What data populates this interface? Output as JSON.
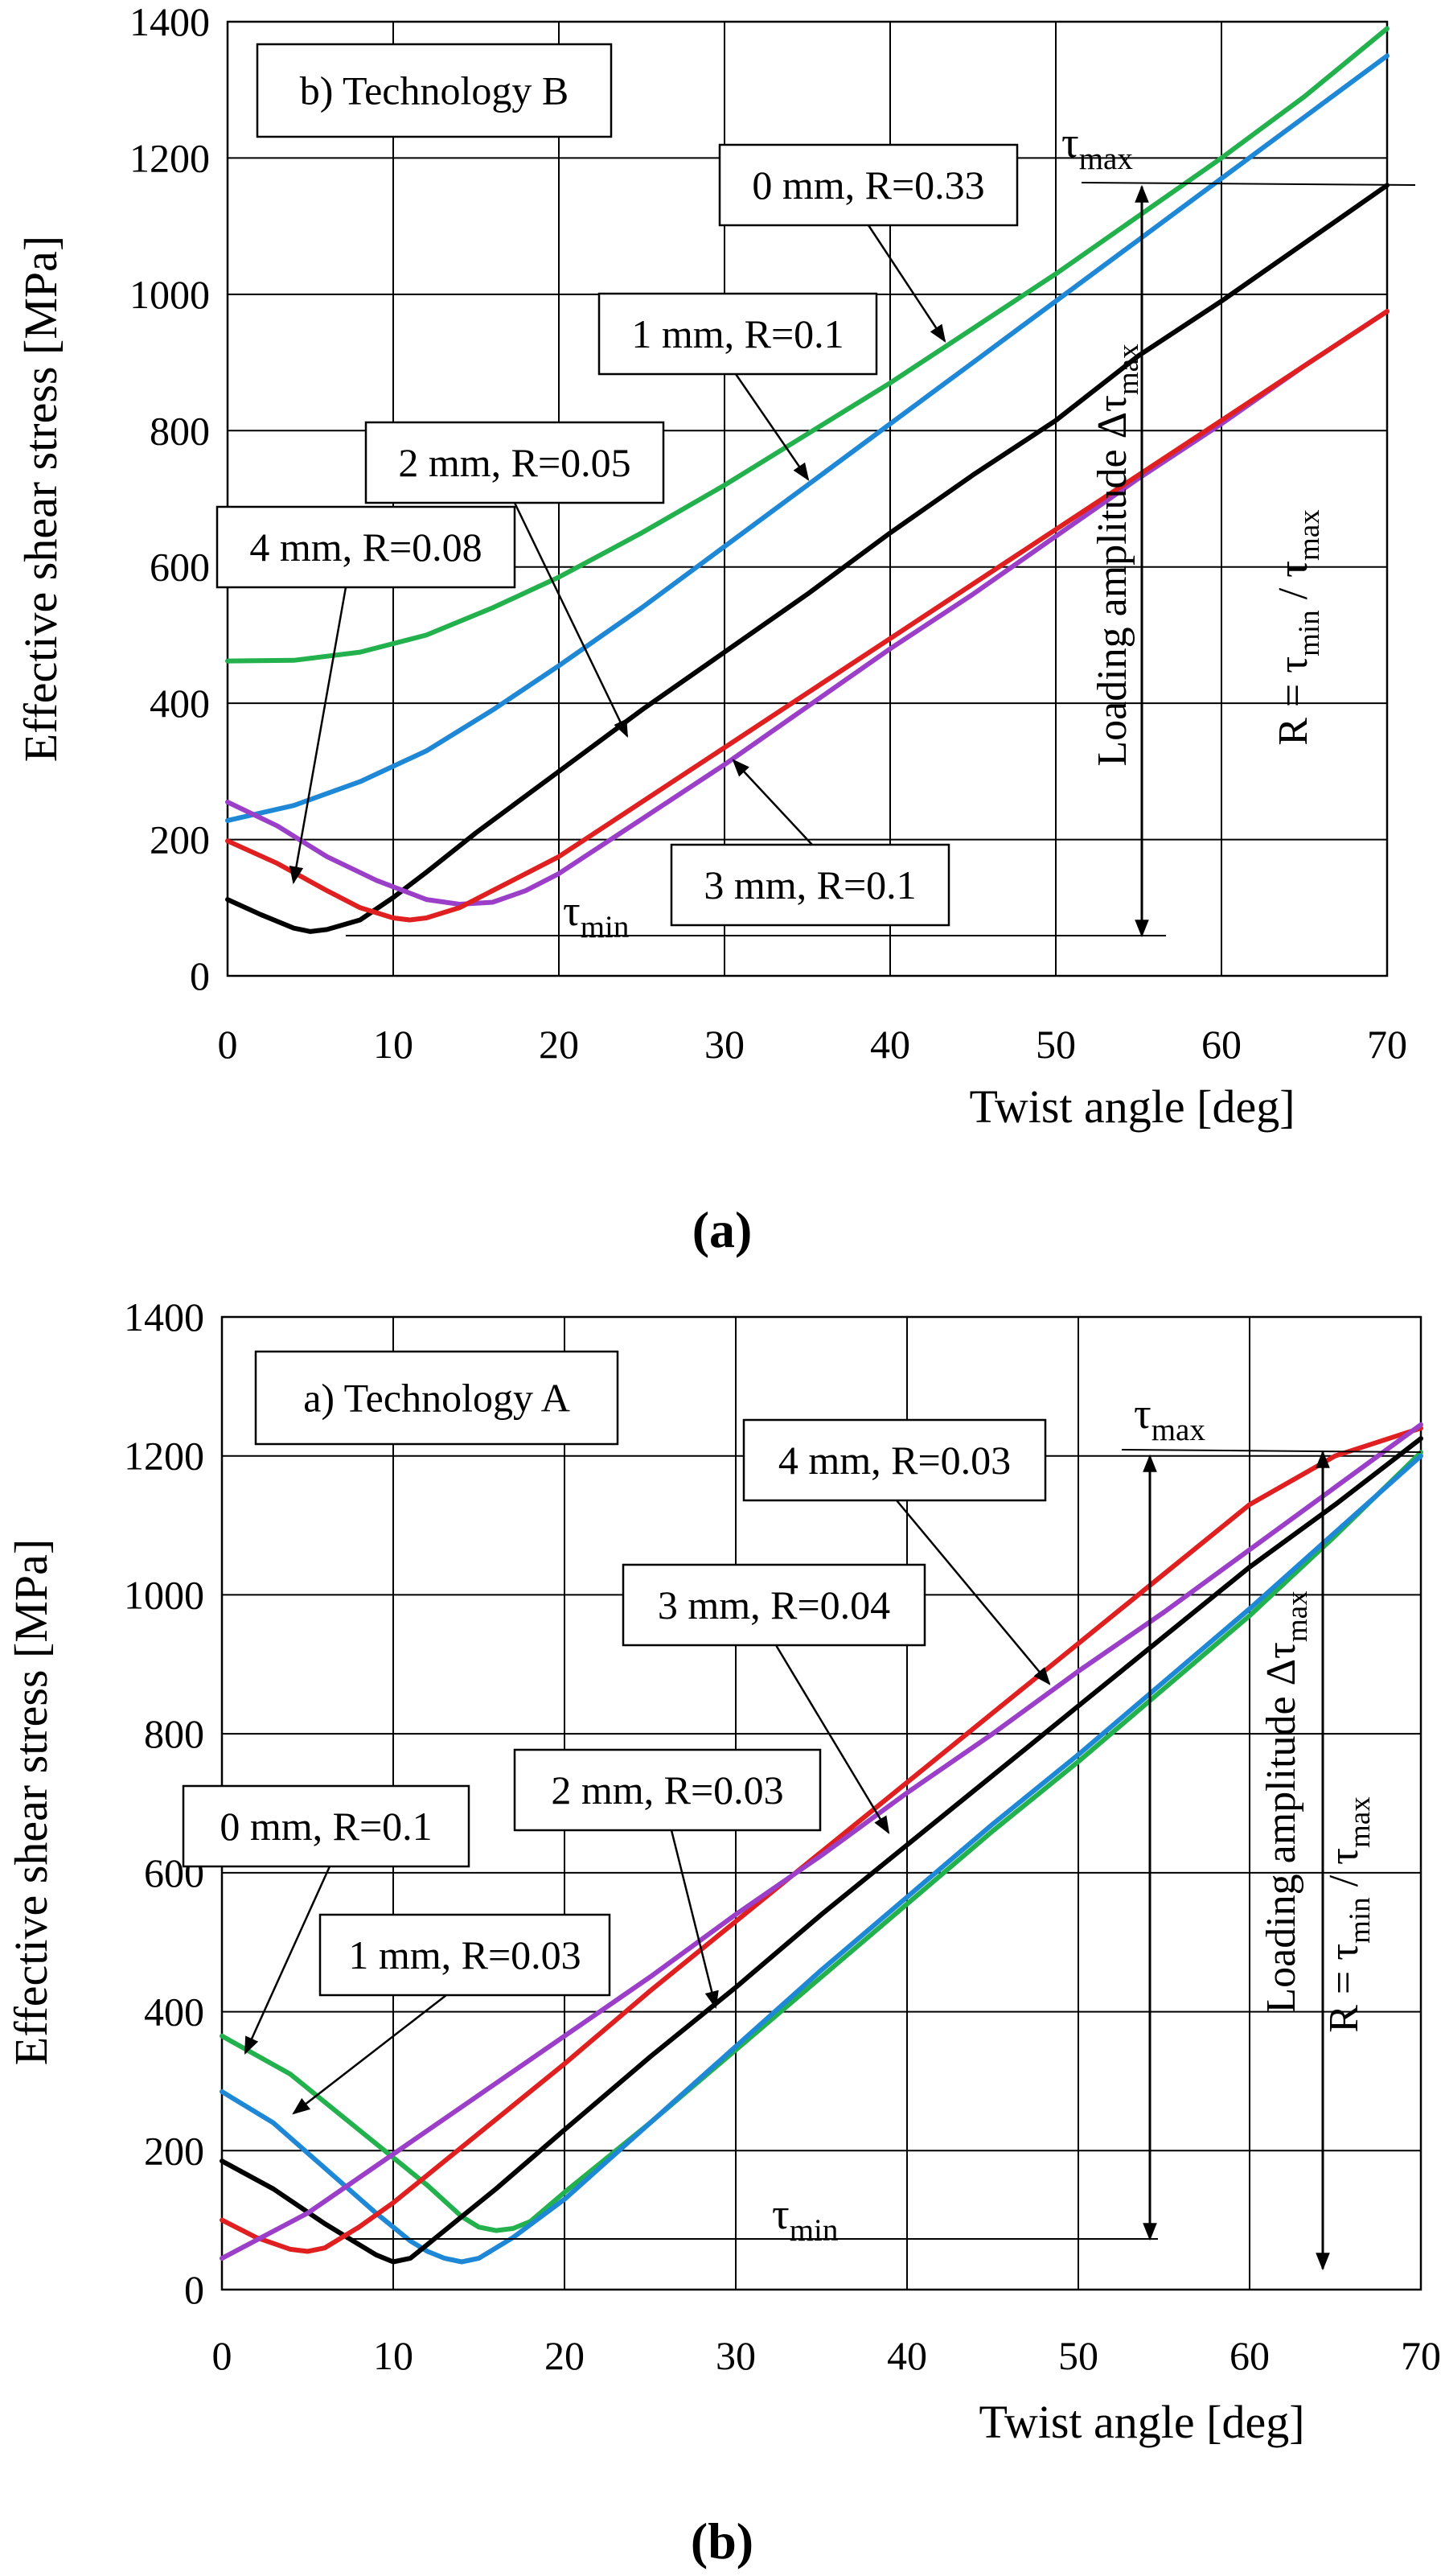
{
  "chart_data": [
    {
      "panel_caption": "(a)",
      "type": "line",
      "title": "b) Technology B",
      "xlabel": "Twist angle [deg]",
      "ylabel": "Effective shear stress  [MPa]",
      "xlim": [
        0,
        70
      ],
      "ylim": [
        0,
        1400
      ],
      "x_ticks": [
        "0",
        "10",
        "20",
        "30",
        "40",
        "50",
        "60",
        "70"
      ],
      "y_ticks": [
        "0",
        "200",
        "400",
        "600",
        "800",
        "1000",
        "1200",
        "1400"
      ],
      "grid": true,
      "annotations": {
        "tau_max": "τ",
        "tau_max_sub": "max",
        "tau_min": "τ",
        "tau_min_sub": "min",
        "loading_amplitude": "Loading amplitude Δτ",
        "loading_amplitude_sub": "max",
        "r_ratio": "R = τ",
        "r_ratio_sub1": "min",
        "r_ratio_mid": " / τ",
        "r_ratio_sub2": "max"
      },
      "series": [
        {
          "name": "0 mm, R=0.33",
          "color": "#22b14c",
          "x": [
            0,
            4,
            8,
            12,
            16,
            20,
            25,
            30,
            35,
            40,
            45,
            50,
            55,
            60,
            65,
            70
          ],
          "y": [
            462,
            463,
            475,
            500,
            540,
            585,
            650,
            720,
            795,
            870,
            950,
            1030,
            1115,
            1200,
            1290,
            1390
          ]
        },
        {
          "name": "1 mm, R=0.1",
          "color": "#1e88d6",
          "x": [
            0,
            4,
            8,
            12,
            16,
            20,
            25,
            30,
            35,
            40,
            45,
            50,
            55,
            60,
            65,
            70
          ],
          "y": [
            228,
            250,
            285,
            330,
            390,
            455,
            540,
            630,
            720,
            810,
            900,
            990,
            1080,
            1170,
            1260,
            1350
          ]
        },
        {
          "name": "2 mm, R=0.05",
          "color": "#000000",
          "x": [
            0,
            2,
            4,
            5,
            6,
            8,
            10,
            12,
            15,
            20,
            25,
            30,
            35,
            40,
            45,
            50,
            55,
            60,
            65,
            70
          ],
          "y": [
            112,
            90,
            70,
            65,
            68,
            82,
            115,
            152,
            210,
            300,
            390,
            475,
            560,
            650,
            735,
            815,
            910,
            990,
            1075,
            1160
          ]
        },
        {
          "name": "3 mm, R=0.1",
          "color": "#9b3fc9",
          "x": [
            0,
            3,
            6,
            9,
            12,
            14,
            16,
            18,
            20,
            25,
            30,
            35,
            40,
            45,
            50,
            55,
            60,
            65,
            70
          ],
          "y": [
            255,
            220,
            175,
            140,
            112,
            105,
            108,
            125,
            150,
            230,
            310,
            395,
            480,
            560,
            645,
            730,
            810,
            895,
            975
          ]
        },
        {
          "name": "4 mm, R=0.08",
          "color": "#e02020",
          "x": [
            0,
            3,
            6,
            8,
            10,
            11,
            12,
            14,
            16,
            20,
            25,
            30,
            35,
            40,
            45,
            50,
            55,
            60,
            65,
            70
          ],
          "y": [
            198,
            165,
            125,
            100,
            85,
            82,
            85,
            100,
            125,
            175,
            255,
            335,
            415,
            495,
            575,
            655,
            735,
            815,
            895,
            975
          ]
        }
      ],
      "labels": [
        {
          "text": "0 mm, R=0.33"
        },
        {
          "text": "1 mm, R=0.1"
        },
        {
          "text": "2 mm, R=0.05"
        },
        {
          "text": "4 mm, R=0.08"
        },
        {
          "text": "3 mm, R=0.1"
        }
      ]
    },
    {
      "panel_caption": "(b)",
      "type": "line",
      "title": "a) Technology A",
      "xlabel": "Twist angle [deg]",
      "ylabel": "Effective shear stress  [MPa]",
      "xlim": [
        0,
        70
      ],
      "ylim": [
        0,
        1400
      ],
      "x_ticks": [
        "0",
        "10",
        "20",
        "30",
        "40",
        "50",
        "60",
        "70"
      ],
      "y_ticks": [
        "0",
        "200",
        "400",
        "600",
        "800",
        "1000",
        "1200",
        "1400"
      ],
      "grid": true,
      "annotations": {
        "tau_max": "τ",
        "tau_max_sub": "max",
        "tau_min": "τ",
        "tau_min_sub": "min",
        "loading_amplitude": "Loading amplitude Δτ",
        "loading_amplitude_sub": "max",
        "r_ratio": "R = τ",
        "r_ratio_sub1": "min",
        "r_ratio_mid": " / τ",
        "r_ratio_sub2": "max"
      },
      "series": [
        {
          "name": "0 mm, R=0.1",
          "color": "#22b14c",
          "x": [
            0,
            4,
            8,
            12,
            14,
            15,
            16,
            17,
            18,
            20,
            25,
            30,
            35,
            40,
            45,
            50,
            55,
            60,
            65,
            70
          ],
          "y": [
            365,
            310,
            230,
            150,
            105,
            90,
            85,
            88,
            98,
            140,
            240,
            345,
            450,
            555,
            660,
            760,
            865,
            970,
            1085,
            1205
          ]
        },
        {
          "name": "1 mm, R=0.03",
          "color": "#1e88d6",
          "x": [
            0,
            3,
            6,
            9,
            11,
            12,
            13,
            14,
            15,
            17,
            20,
            25,
            30,
            35,
            40,
            45,
            50,
            55,
            60,
            65,
            70
          ],
          "y": [
            285,
            240,
            175,
            110,
            70,
            55,
            45,
            40,
            45,
            75,
            130,
            240,
            350,
            460,
            565,
            670,
            770,
            875,
            980,
            1090,
            1200
          ]
        },
        {
          "name": "2 mm, R=0.03",
          "color": "#000000",
          "x": [
            0,
            3,
            6,
            8,
            9,
            10,
            11,
            12,
            14,
            16,
            20,
            25,
            30,
            35,
            40,
            45,
            50,
            55,
            60,
            65,
            70
          ],
          "y": [
            185,
            145,
            95,
            65,
            50,
            40,
            45,
            65,
            105,
            145,
            230,
            335,
            435,
            540,
            640,
            740,
            840,
            940,
            1040,
            1130,
            1225
          ]
        },
        {
          "name": "3 mm, R=0.04",
          "color": "#e02020",
          "x": [
            0,
            2,
            4,
            5,
            6,
            8,
            10,
            15,
            20,
            25,
            30,
            35,
            40,
            45,
            50,
            55,
            60,
            65,
            70
          ],
          "y": [
            100,
            75,
            58,
            55,
            60,
            90,
            125,
            225,
            325,
            430,
            530,
            630,
            730,
            830,
            930,
            1030,
            1130,
            1200,
            1240
          ]
        },
        {
          "name": "4 mm, R=0.03",
          "color": "#9b3fc9",
          "x": [
            0,
            5,
            10,
            15,
            20,
            25,
            30,
            35,
            40,
            45,
            50,
            55,
            60,
            65,
            70
          ],
          "y": [
            45,
            110,
            195,
            280,
            365,
            450,
            540,
            625,
            715,
            800,
            890,
            975,
            1065,
            1155,
            1245
          ]
        }
      ],
      "labels": [
        {
          "text": "4 mm, R=0.03"
        },
        {
          "text": "3 mm, R=0.04"
        },
        {
          "text": "2 mm, R=0.03"
        },
        {
          "text": "0 mm, R=0.1"
        },
        {
          "text": "1 mm, R=0.03"
        }
      ]
    }
  ]
}
